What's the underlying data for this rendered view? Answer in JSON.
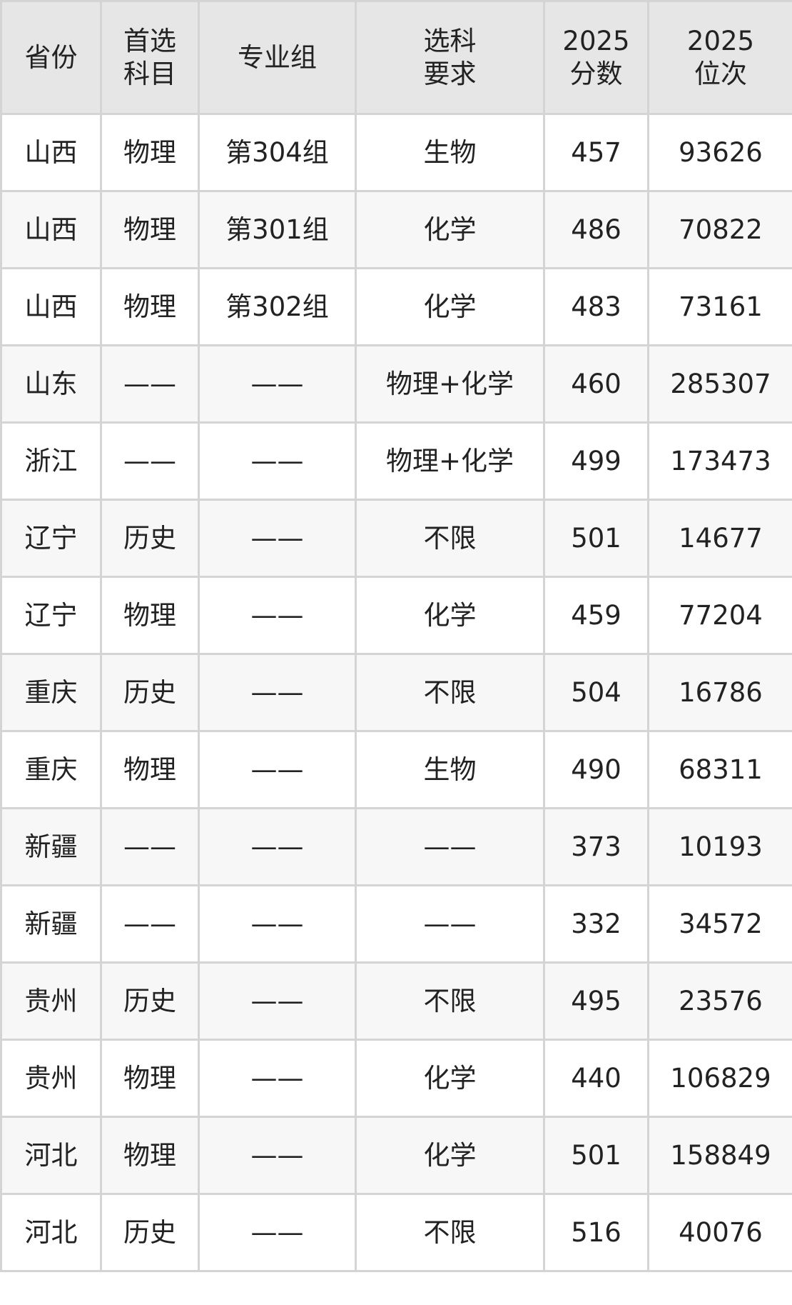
{
  "headers": [
    "省份",
    "首选\n科目",
    "专业组",
    "选科\n要求",
    "2025\n分数",
    "2025\n位次"
  ],
  "rows": [
    [
      "山西",
      "物理",
      "第304组",
      "生物",
      "457",
      "93626"
    ],
    [
      "山西",
      "物理",
      "第301组",
      "化学",
      "486",
      "70822"
    ],
    [
      "山西",
      "物理",
      "第302组",
      "化学",
      "483",
      "73161"
    ],
    [
      "山东",
      "——",
      "——",
      "物理+化学",
      "460",
      "285307"
    ],
    [
      "浙江",
      "——",
      "——",
      "物理+化学",
      "499",
      "173473"
    ],
    [
      "辽宁",
      "历史",
      "——",
      "不限",
      "501",
      "14677"
    ],
    [
      "辽宁",
      "物理",
      "——",
      "化学",
      "459",
      "77204"
    ],
    [
      "重庆",
      "历史",
      "——",
      "不限",
      "504",
      "16786"
    ],
    [
      "重庆",
      "物理",
      "——",
      "生物",
      "490",
      "68311"
    ],
    [
      "新疆",
      "——",
      "——",
      "——",
      "373",
      "10193"
    ],
    [
      "新疆",
      "——",
      "——",
      "——",
      "332",
      "34572"
    ],
    [
      "贵州",
      "历史",
      "——",
      "不限",
      "495",
      "23576"
    ],
    [
      "贵州",
      "物理",
      "——",
      "化学",
      "440",
      "106829"
    ],
    [
      "河北",
      "物理",
      "——",
      "化学",
      "501",
      "158849"
    ],
    [
      "河北",
      "历史",
      "——",
      "不限",
      "516",
      "40076"
    ]
  ]
}
